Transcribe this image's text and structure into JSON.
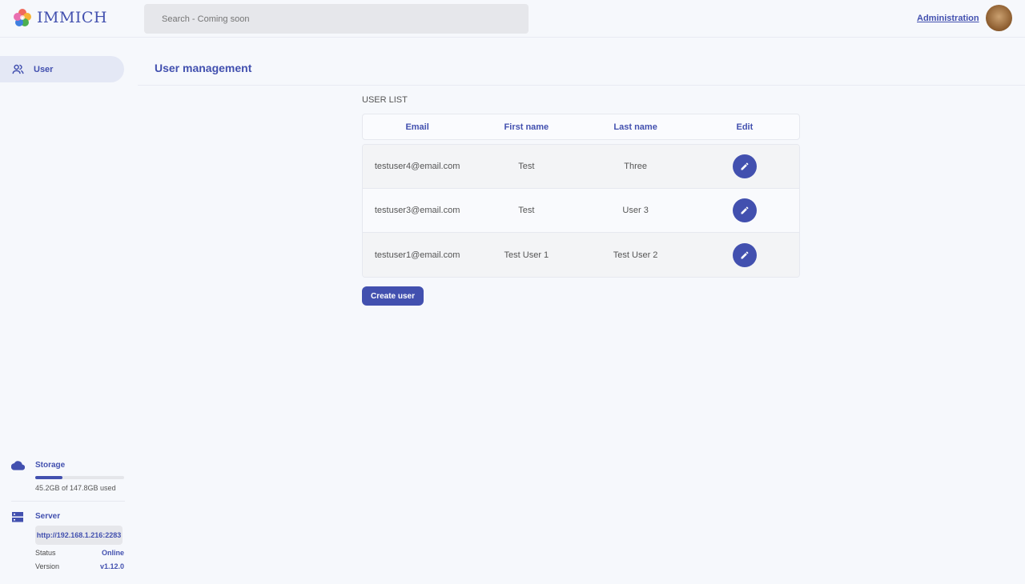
{
  "header": {
    "app_name": "IMMICH",
    "search_placeholder": "Search - Coming soon",
    "admin_link": "Administration"
  },
  "sidebar": {
    "items": [
      {
        "label": "User",
        "icon": "users-icon",
        "active": true
      }
    ]
  },
  "main": {
    "title": "User management",
    "list_label": "USER LIST",
    "columns": [
      "Email",
      "First name",
      "Last name",
      "Edit"
    ],
    "rows": [
      {
        "email": "testuser4@email.com",
        "first": "Test",
        "last": "Three"
      },
      {
        "email": "testuser3@email.com",
        "first": "Test",
        "last": "User 3"
      },
      {
        "email": "testuser1@email.com",
        "first": "Test User 1",
        "last": "Test User 2"
      }
    ],
    "create_button": "Create user"
  },
  "storage": {
    "title": "Storage",
    "usage_text": "45.2GB of 147.8GB used",
    "used_percent": 30.6
  },
  "server": {
    "title": "Server",
    "url": "http://192.168.1.216:2283",
    "status_label": "Status",
    "status": "Online",
    "version_label": "Version",
    "version": "v1.12.0"
  },
  "colors": {
    "accent": "#4250af",
    "background": "#f6f8fc"
  }
}
